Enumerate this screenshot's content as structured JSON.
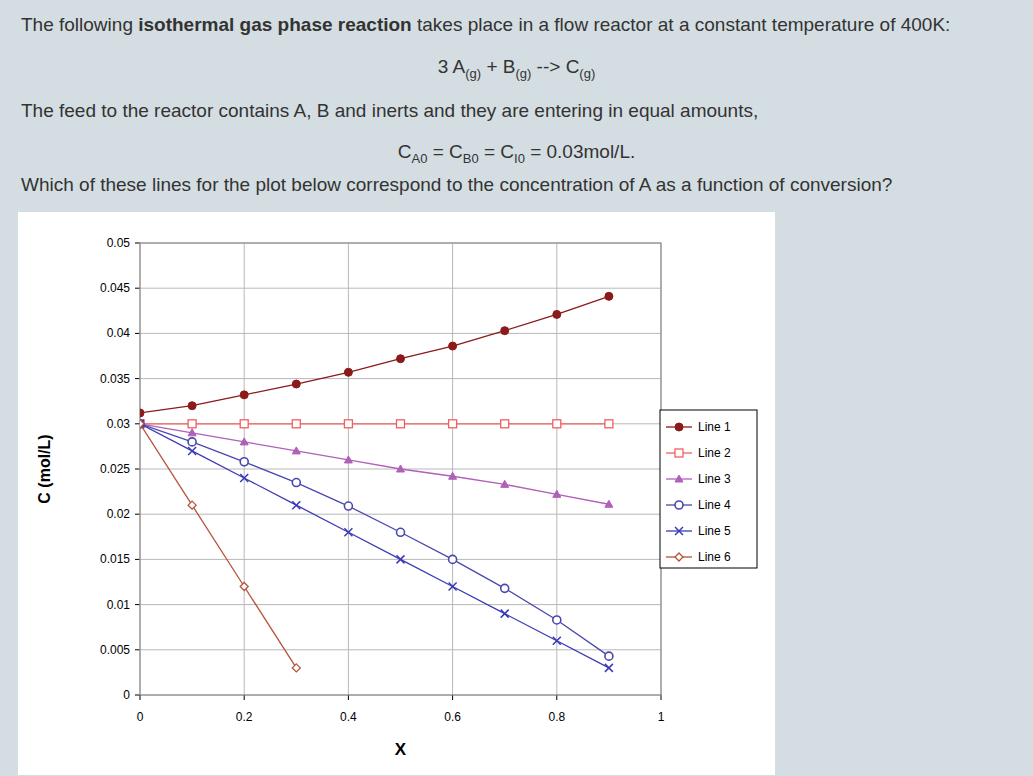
{
  "page": {
    "lines": [
      [
        {
          "t": "The following "
        },
        {
          "t": "isothermal gas phase reaction",
          "b": true
        },
        {
          "t": " takes place in a flow reactor at a constant temperature of 400K:"
        }
      ],
      [
        {
          "t": "3 A",
          "sub": "(g)"
        },
        {
          "t": " + B",
          "sub": "(g)"
        },
        {
          "t": " --> C",
          "sub": "(g)"
        }
      ],
      [
        {
          "t": "The feed to the reactor contains A, B and inerts and they are entering in equal amounts,"
        }
      ],
      [
        {
          "t": "C",
          "sub": "A0"
        },
        {
          "t": " = C",
          "sub": "B0"
        },
        {
          "t": " = C",
          "sub": "I0"
        },
        {
          "t": " = 0.03mol/L."
        }
      ],
      [
        {
          "t": "Which of these lines for the plot below correspond to the concentration of A as a function of conversion?"
        }
      ]
    ]
  },
  "chart_data": {
    "type": "line",
    "x_label": "X",
    "y_label": "C (mol/L)",
    "x": [
      0,
      0.1,
      0.2,
      0.3,
      0.4,
      0.5,
      0.6,
      0.7,
      0.8,
      0.9
    ],
    "xlim": [
      0,
      1
    ],
    "xticks": [
      0,
      0.2,
      0.4,
      0.6,
      0.8,
      1
    ],
    "ylim": [
      0,
      0.05
    ],
    "yticks": [
      0,
      0.005,
      0.01,
      0.015,
      0.02,
      0.025,
      0.03,
      0.035,
      0.04,
      0.045,
      0.05
    ],
    "grid": true,
    "legend": "right",
    "series": [
      {
        "name": "Line 1",
        "color": "#8b1a1a",
        "marker": "circle-filled",
        "values": [
          0.0312,
          0.032,
          0.0332,
          0.0344,
          0.0357,
          0.0372,
          0.0386,
          0.0403,
          0.0421,
          0.0441
        ]
      },
      {
        "name": "Line 2",
        "color": "#f06060",
        "marker": "square-open",
        "values": [
          0.03,
          0.03,
          0.03,
          0.03,
          0.03,
          0.03,
          0.03,
          0.03,
          0.03,
          0.03
        ]
      },
      {
        "name": "Line 3",
        "color": "#b060b8",
        "marker": "triangle",
        "values": [
          0.03,
          0.029,
          0.028,
          0.027,
          0.026,
          0.025,
          0.0242,
          0.0233,
          0.0222,
          0.0211
        ]
      },
      {
        "name": "Line 4",
        "color": "#4848b0",
        "marker": "circle-open",
        "values": [
          0.03,
          0.028,
          0.0258,
          0.0235,
          0.0209,
          0.018,
          0.015,
          0.0118,
          0.0083,
          0.0043
        ]
      },
      {
        "name": "Line 5",
        "color": "#3a3ab8",
        "marker": "x",
        "values": [
          0.03,
          0.027,
          0.024,
          0.021,
          0.018,
          0.015,
          0.012,
          0.009,
          0.006,
          0.003
        ]
      },
      {
        "name": "Line 6",
        "color": "#b5533a",
        "marker": "diamond-open",
        "values": [
          0.03,
          0.021,
          0.012,
          0.003,
          null,
          null,
          null,
          null,
          null,
          null
        ]
      }
    ]
  }
}
